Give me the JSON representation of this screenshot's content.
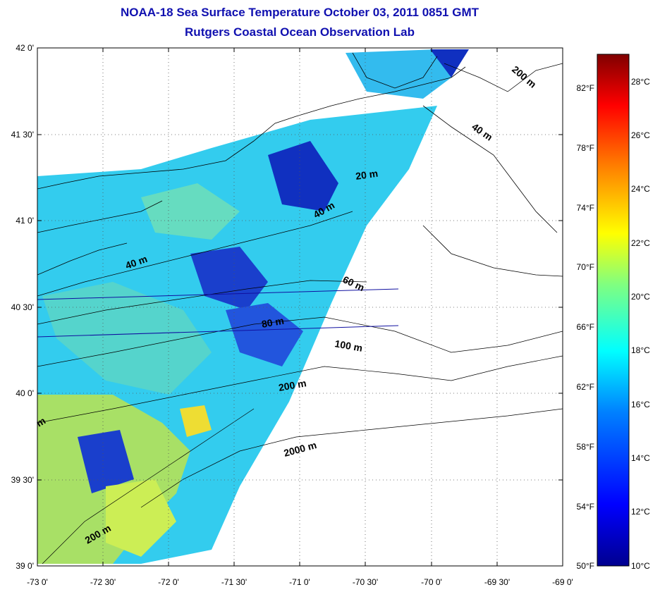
{
  "title": "NOAA-18 Sea Surface Temperature October 03, 2011 0851 GMT",
  "subtitle": "Rutgers Coastal Ocean Observation Lab",
  "map": {
    "lon_ticks": [
      "-73 0'",
      "-72 30'",
      "-72 0'",
      "-71 30'",
      "-71 0'",
      "-70 30'",
      "-70 0'",
      "-69 30'",
      "-69 0'"
    ],
    "lat_ticks": [
      "42 0'",
      "41 30'",
      "41 0'",
      "40 30'",
      "40 0'",
      "39 30'",
      "39 0'"
    ],
    "lon_range": [
      -73,
      -69
    ],
    "lat_range": [
      39,
      42
    ],
    "grid": true,
    "contour_labels": [
      "200 m",
      "40 m",
      "20 m",
      "40 m",
      "40 m",
      "60 m",
      "80 m",
      "100 m",
      "200 m",
      "2000 m",
      "200 m",
      "m"
    ]
  },
  "colorbar": {
    "celsius_labels": [
      "28°C",
      "26°C",
      "24°C",
      "22°C",
      "20°C",
      "18°C",
      "16°C",
      "14°C",
      "12°C",
      "10°C"
    ],
    "fahrenheit_labels": [
      "82°F",
      "78°F",
      "74°F",
      "70°F",
      "66°F",
      "62°F",
      "58°F",
      "54°F",
      "50°F"
    ],
    "range_c": [
      10,
      29.5
    ],
    "colors": [
      "#00008f",
      "#0000ff",
      "#0080ff",
      "#00ffff",
      "#80ff80",
      "#ffff00",
      "#ff8000",
      "#ff0000",
      "#800000"
    ]
  }
}
